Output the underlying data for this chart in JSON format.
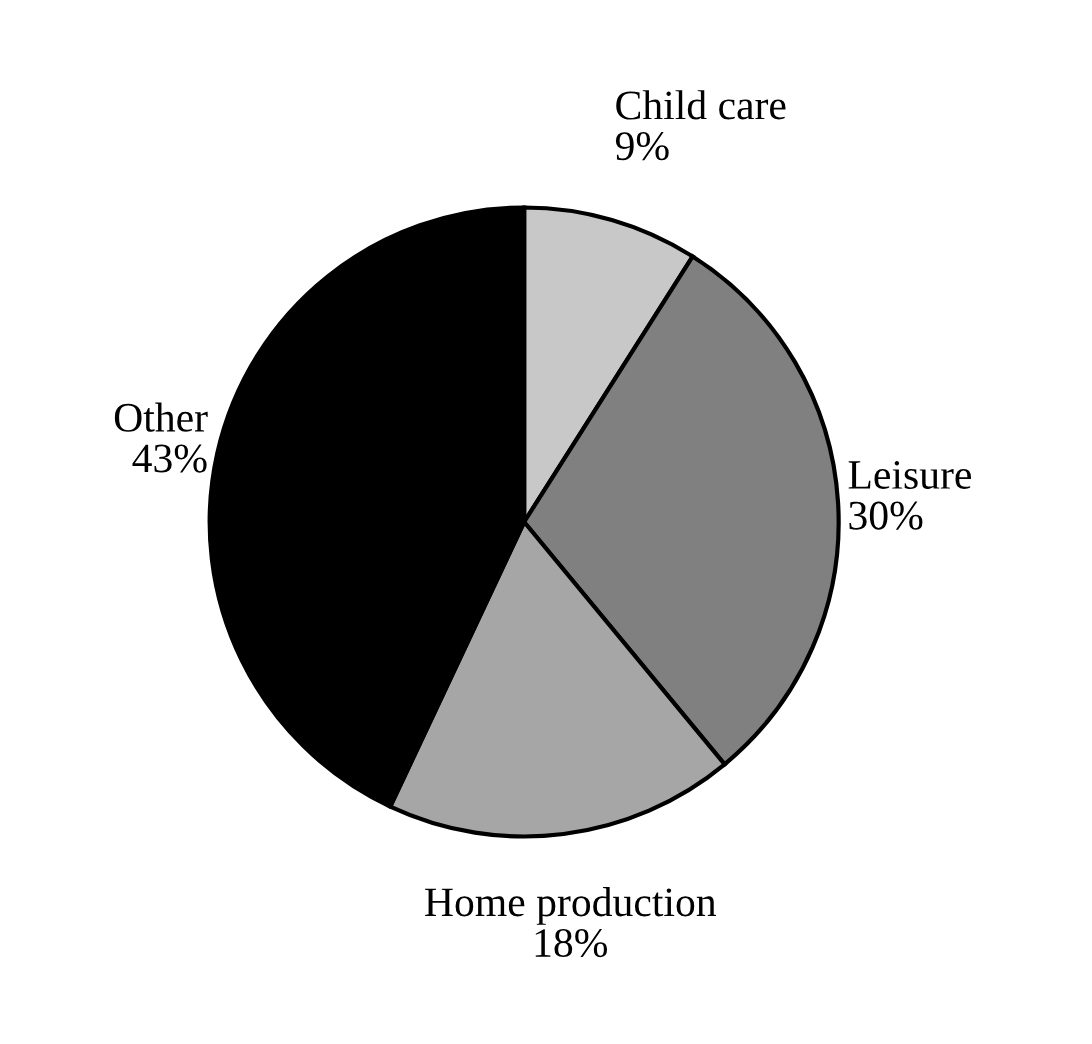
{
  "chart_data": {
    "type": "pie",
    "categories": [
      "Child care",
      "Leisure",
      "Home production",
      "Other"
    ],
    "values": [
      9,
      30,
      18,
      43
    ],
    "value_labels": [
      "9%",
      "30%",
      "18%",
      "43%"
    ],
    "colors": [
      "#c8c8c8",
      "#808080",
      "#a6a6a6",
      "#000000"
    ],
    "legend": false
  }
}
